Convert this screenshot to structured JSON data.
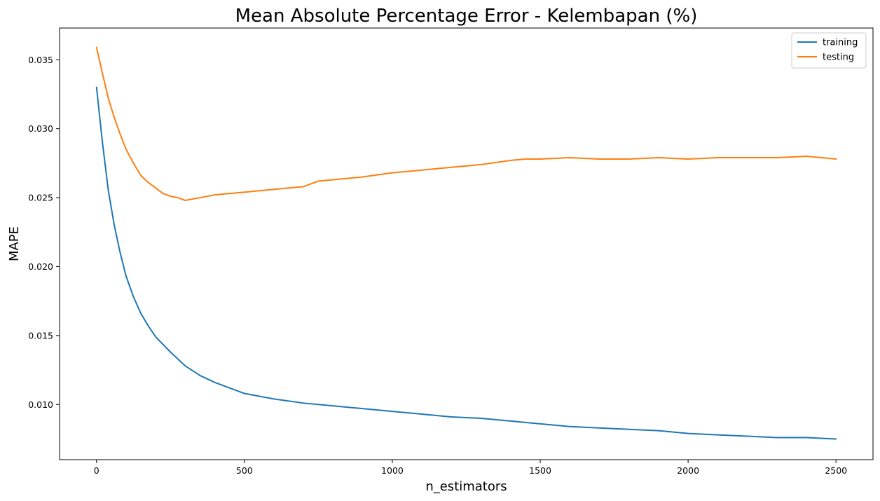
{
  "chart_data": {
    "type": "line",
    "title": "Mean Absolute Percentage Error - Kelembapan (%)",
    "xlabel": "n_estimators",
    "ylabel": "MAPE",
    "xlim": [
      -125,
      2625
    ],
    "ylim": [
      0.006,
      0.0373
    ],
    "xticks": [
      0,
      500,
      1000,
      1500,
      2000,
      2500
    ],
    "xtick_labels": [
      "0",
      "500",
      "1000",
      "1500",
      "2000",
      "2500"
    ],
    "yticks": [
      0.01,
      0.015,
      0.02,
      0.025,
      0.03,
      0.035
    ],
    "ytick_labels": [
      "0.010",
      "0.015",
      "0.020",
      "0.025",
      "0.030",
      "0.035"
    ],
    "grid": false,
    "legend_position": "top-right",
    "series": [
      {
        "name": "training",
        "color": "#1f77b4",
        "points": [
          [
            0,
            0.033
          ],
          [
            20,
            0.029
          ],
          [
            40,
            0.0255
          ],
          [
            60,
            0.023
          ],
          [
            80,
            0.021
          ],
          [
            100,
            0.0193
          ],
          [
            125,
            0.0178
          ],
          [
            150,
            0.0166
          ],
          [
            175,
            0.0157
          ],
          [
            200,
            0.0149
          ],
          [
            250,
            0.0138
          ],
          [
            300,
            0.0128
          ],
          [
            350,
            0.0121
          ],
          [
            400,
            0.0116
          ],
          [
            450,
            0.0112
          ],
          [
            500,
            0.0108
          ],
          [
            600,
            0.0104
          ],
          [
            700,
            0.0101
          ],
          [
            800,
            0.0099
          ],
          [
            900,
            0.0097
          ],
          [
            1000,
            0.0095
          ],
          [
            1100,
            0.0093
          ],
          [
            1200,
            0.0091
          ],
          [
            1300,
            0.009
          ],
          [
            1400,
            0.0088
          ],
          [
            1500,
            0.0086
          ],
          [
            1600,
            0.0084
          ],
          [
            1700,
            0.0083
          ],
          [
            1800,
            0.0082
          ],
          [
            1900,
            0.0081
          ],
          [
            2000,
            0.0079
          ],
          [
            2100,
            0.0078
          ],
          [
            2200,
            0.0077
          ],
          [
            2300,
            0.0076
          ],
          [
            2400,
            0.0076
          ],
          [
            2500,
            0.0075
          ]
        ]
      },
      {
        "name": "testing",
        "color": "#ff7f0e",
        "points": [
          [
            0,
            0.0359
          ],
          [
            20,
            0.034
          ],
          [
            40,
            0.0322
          ],
          [
            60,
            0.0308
          ],
          [
            80,
            0.0296
          ],
          [
            100,
            0.0285
          ],
          [
            125,
            0.0275
          ],
          [
            150,
            0.0266
          ],
          [
            175,
            0.0261
          ],
          [
            200,
            0.0257
          ],
          [
            225,
            0.0253
          ],
          [
            250,
            0.0251
          ],
          [
            275,
            0.025
          ],
          [
            300,
            0.0248
          ],
          [
            325,
            0.0249
          ],
          [
            350,
            0.025
          ],
          [
            400,
            0.0252
          ],
          [
            450,
            0.0253
          ],
          [
            500,
            0.0254
          ],
          [
            550,
            0.0255
          ],
          [
            600,
            0.0256
          ],
          [
            650,
            0.0257
          ],
          [
            700,
            0.0258
          ],
          [
            750,
            0.0262
          ],
          [
            800,
            0.0263
          ],
          [
            900,
            0.0265
          ],
          [
            1000,
            0.0268
          ],
          [
            1100,
            0.027
          ],
          [
            1200,
            0.0272
          ],
          [
            1300,
            0.0274
          ],
          [
            1400,
            0.0277
          ],
          [
            1450,
            0.0278
          ],
          [
            1500,
            0.0278
          ],
          [
            1600,
            0.0279
          ],
          [
            1700,
            0.0278
          ],
          [
            1800,
            0.0278
          ],
          [
            1900,
            0.0279
          ],
          [
            2000,
            0.0278
          ],
          [
            2100,
            0.0279
          ],
          [
            2200,
            0.0279
          ],
          [
            2300,
            0.0279
          ],
          [
            2400,
            0.028
          ],
          [
            2450,
            0.0279
          ],
          [
            2500,
            0.0278
          ]
        ]
      }
    ]
  }
}
